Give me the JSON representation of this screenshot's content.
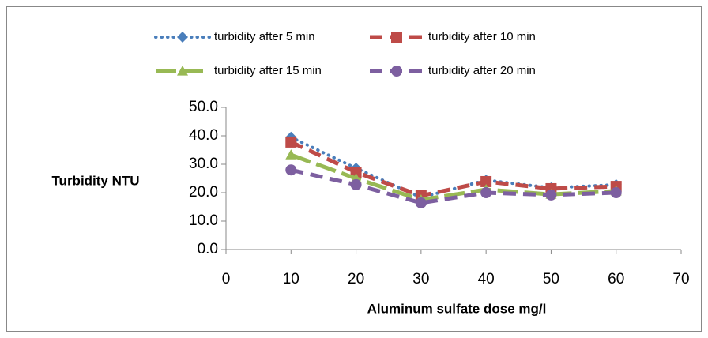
{
  "chart_data": {
    "type": "line",
    "x_label": "Aluminum sulfate dose mg/l",
    "y_label": "Turbidity NTU",
    "x": [
      10,
      20,
      30,
      40,
      50,
      60
    ],
    "series": [
      {
        "name": "turbidity after 5 min",
        "color": "#4a7ebb",
        "style": "dot",
        "marker": "diamond",
        "values": [
          39.5,
          28.6,
          18.3,
          24.4,
          21.7,
          22.8
        ]
      },
      {
        "name": "turbidity after 10 min",
        "color": "#be4b48",
        "style": "dash",
        "marker": "square",
        "values": [
          37.8,
          27.2,
          18.9,
          23.9,
          21.4,
          22.2
        ]
      },
      {
        "name": "turbidity after 15 min",
        "color": "#98b954",
        "style": "longdash",
        "marker": "triangle",
        "values": [
          33.3,
          25.0,
          17.5,
          21.1,
          19.4,
          20.6
        ]
      },
      {
        "name": "turbidity after 20 min",
        "color": "#7d5fa0",
        "style": "dash",
        "marker": "circle",
        "values": [
          28.0,
          22.8,
          16.4,
          20.0,
          19.2,
          20.0
        ]
      }
    ],
    "xlim": [
      0,
      70
    ],
    "xticks": [
      0,
      10,
      20,
      30,
      40,
      50,
      60,
      70
    ],
    "ylim": [
      0,
      50
    ],
    "yticks": [
      {
        "value": 0,
        "label": "0.0"
      },
      {
        "value": 10,
        "label": "10.0"
      },
      {
        "value": 20,
        "label": "20.0"
      },
      {
        "value": 30,
        "label": "30.0"
      },
      {
        "value": 40,
        "label": "40.0"
      },
      {
        "value": 50,
        "label": "50.0"
      }
    ],
    "grid": false,
    "legend": "top"
  }
}
